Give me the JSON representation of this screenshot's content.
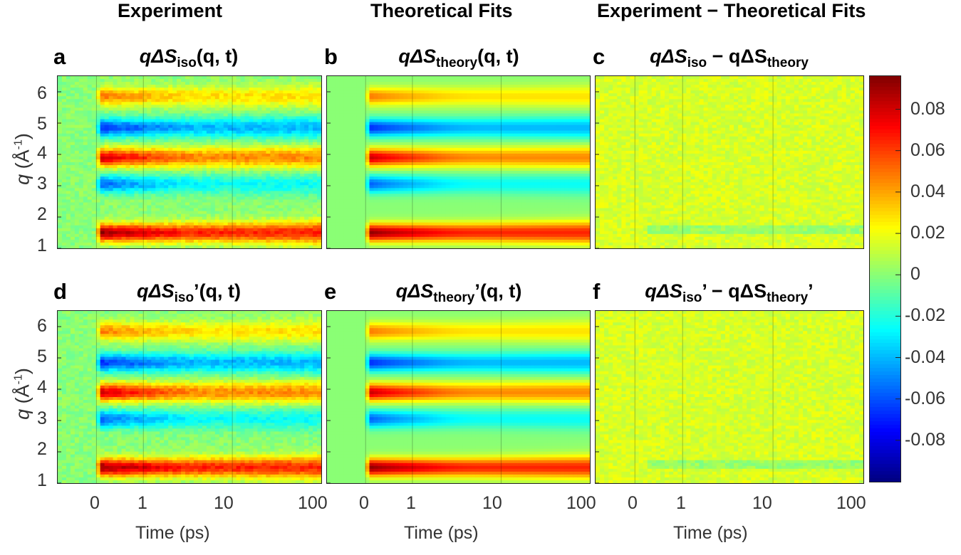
{
  "chart_data": {
    "type": "heatmap",
    "column_titles": [
      "Experiment",
      "Theoretical Fits",
      "Experiment − Theoretical Fits"
    ],
    "xlabel": "Time (ps)",
    "ylabel": {
      "var": "q",
      "text": " (Å",
      "sup": "-1",
      "close": ")"
    },
    "x_scale": "linear below 1 ps, logarithmic above",
    "x_ticks": [
      "0",
      "1",
      "10",
      "100"
    ],
    "x_range_ps": [
      -1,
      100
    ],
    "y_ticks": [
      "1",
      "2",
      "3",
      "4",
      "5",
      "6"
    ],
    "y_range": [
      1,
      6.5
    ],
    "colormap": "jet",
    "color_range": [
      -0.1,
      0.096
    ],
    "colorbar_ticks": [
      "0.08",
      "0.06",
      "0.04",
      "0.02",
      "0",
      "-0.02",
      "-0.04",
      "-0.06",
      "-0.08"
    ],
    "colorbar_tick_values": [
      0.08,
      0.06,
      0.04,
      0.02,
      0,
      -0.02,
      -0.04,
      -0.06,
      -0.08
    ],
    "bands": [
      {
        "q": 1.5,
        "peak_value": 0.095,
        "late_value": 0.065
      },
      {
        "q": 3.05,
        "peak_value": -0.06,
        "late_value": -0.025
      },
      {
        "q": 3.9,
        "peak_value": 0.085,
        "late_value": 0.045
      },
      {
        "q": 4.85,
        "peak_value": -0.07,
        "late_value": -0.04
      },
      {
        "q": 5.85,
        "peak_value": 0.05,
        "late_value": 0.028
      }
    ],
    "panels": [
      {
        "letter": "a",
        "pre": "qΔS",
        "sub": "iso",
        "prime": "",
        "post": "(q, t)",
        "kind": "experiment"
      },
      {
        "letter": "b",
        "pre": "qΔS",
        "sub": "theory",
        "prime": "",
        "post": "(q, t)",
        "kind": "theory"
      },
      {
        "letter": "c",
        "pre": "qΔS",
        "sub": "iso",
        "prime": "",
        "post": " − qΔS",
        "sub2": "theory",
        "post2": "",
        "kind": "residual"
      },
      {
        "letter": "d",
        "pre": "qΔS",
        "sub": "iso",
        "prime": "’",
        "post": "(q, t)",
        "kind": "experiment"
      },
      {
        "letter": "e",
        "pre": "qΔS",
        "sub": "theory",
        "prime": "’",
        "post": "(q, t)",
        "kind": "theory"
      },
      {
        "letter": "f",
        "pre": "qΔS",
        "sub": "iso",
        "prime": "’",
        "post": " − qΔS",
        "sub2": "theory",
        "post2": "’",
        "kind": "residual"
      }
    ]
  }
}
